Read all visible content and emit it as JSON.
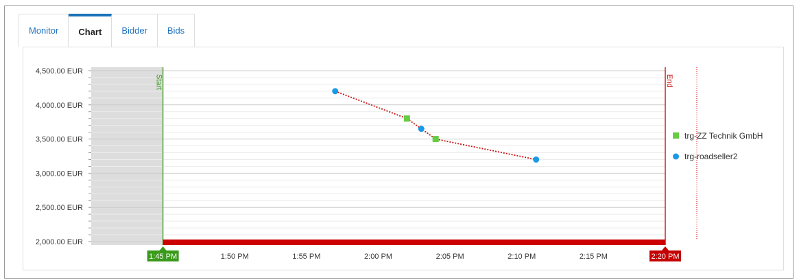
{
  "tabs": [
    {
      "label": "Monitor",
      "active": false
    },
    {
      "label": "Chart",
      "active": true
    },
    {
      "label": "Bidder",
      "active": false
    },
    {
      "label": "Bids",
      "active": false
    }
  ],
  "chart_data": {
    "type": "scatter",
    "ylim": [
      1950,
      4550
    ],
    "xlim_minutes": [
      0,
      40
    ],
    "x_reference": "1:40 PM",
    "y_ticks": [
      "2,000.00 EUR",
      "2,500.00 EUR",
      "3,000.00 EUR",
      "3,500.00 EUR",
      "4,000.00 EUR",
      "4,500.00 EUR"
    ],
    "y_tick_values": [
      2000,
      2500,
      3000,
      3500,
      4000,
      4500
    ],
    "x_ticks": [
      "1:45 PM",
      "1:50 PM",
      "1:55 PM",
      "2:00 PM",
      "2:05 PM",
      "2:10 PM",
      "2:15 PM",
      "2:20 PM"
    ],
    "start_label": "Start",
    "end_label": "End",
    "start_time": "1:45 PM",
    "end_time": "2:20 PM",
    "grid": true,
    "legend_position": "right",
    "series": [
      {
        "name": "trg-ZZ Technik GmbH",
        "marker": "square",
        "color": "#66cc44",
        "points": [
          {
            "time": "2:02 PM",
            "value": 3800
          },
          {
            "time": "2:04 PM",
            "value": 3500
          }
        ]
      },
      {
        "name": "trg-roadseller2",
        "marker": "circle",
        "color": "#1a99e6",
        "points": [
          {
            "time": "1:57 PM",
            "value": 4200
          },
          {
            "time": "2:03 PM",
            "value": 3650
          },
          {
            "time": "2:11 PM",
            "value": 3200
          }
        ]
      }
    ],
    "best_bid_line": {
      "color": "#cc1111",
      "points": [
        {
          "time": "1:57 PM",
          "value": 4200
        },
        {
          "time": "2:02 PM",
          "value": 3800
        },
        {
          "time": "2:03 PM",
          "value": 3650
        },
        {
          "time": "2:04 PM",
          "value": 3500
        },
        {
          "time": "2:11 PM",
          "value": 3200
        }
      ]
    },
    "colors": {
      "start": "#3a9a1a",
      "end": "#c40000",
      "timeline_bar": "#cc0000",
      "shaded": "#dddddd"
    }
  }
}
